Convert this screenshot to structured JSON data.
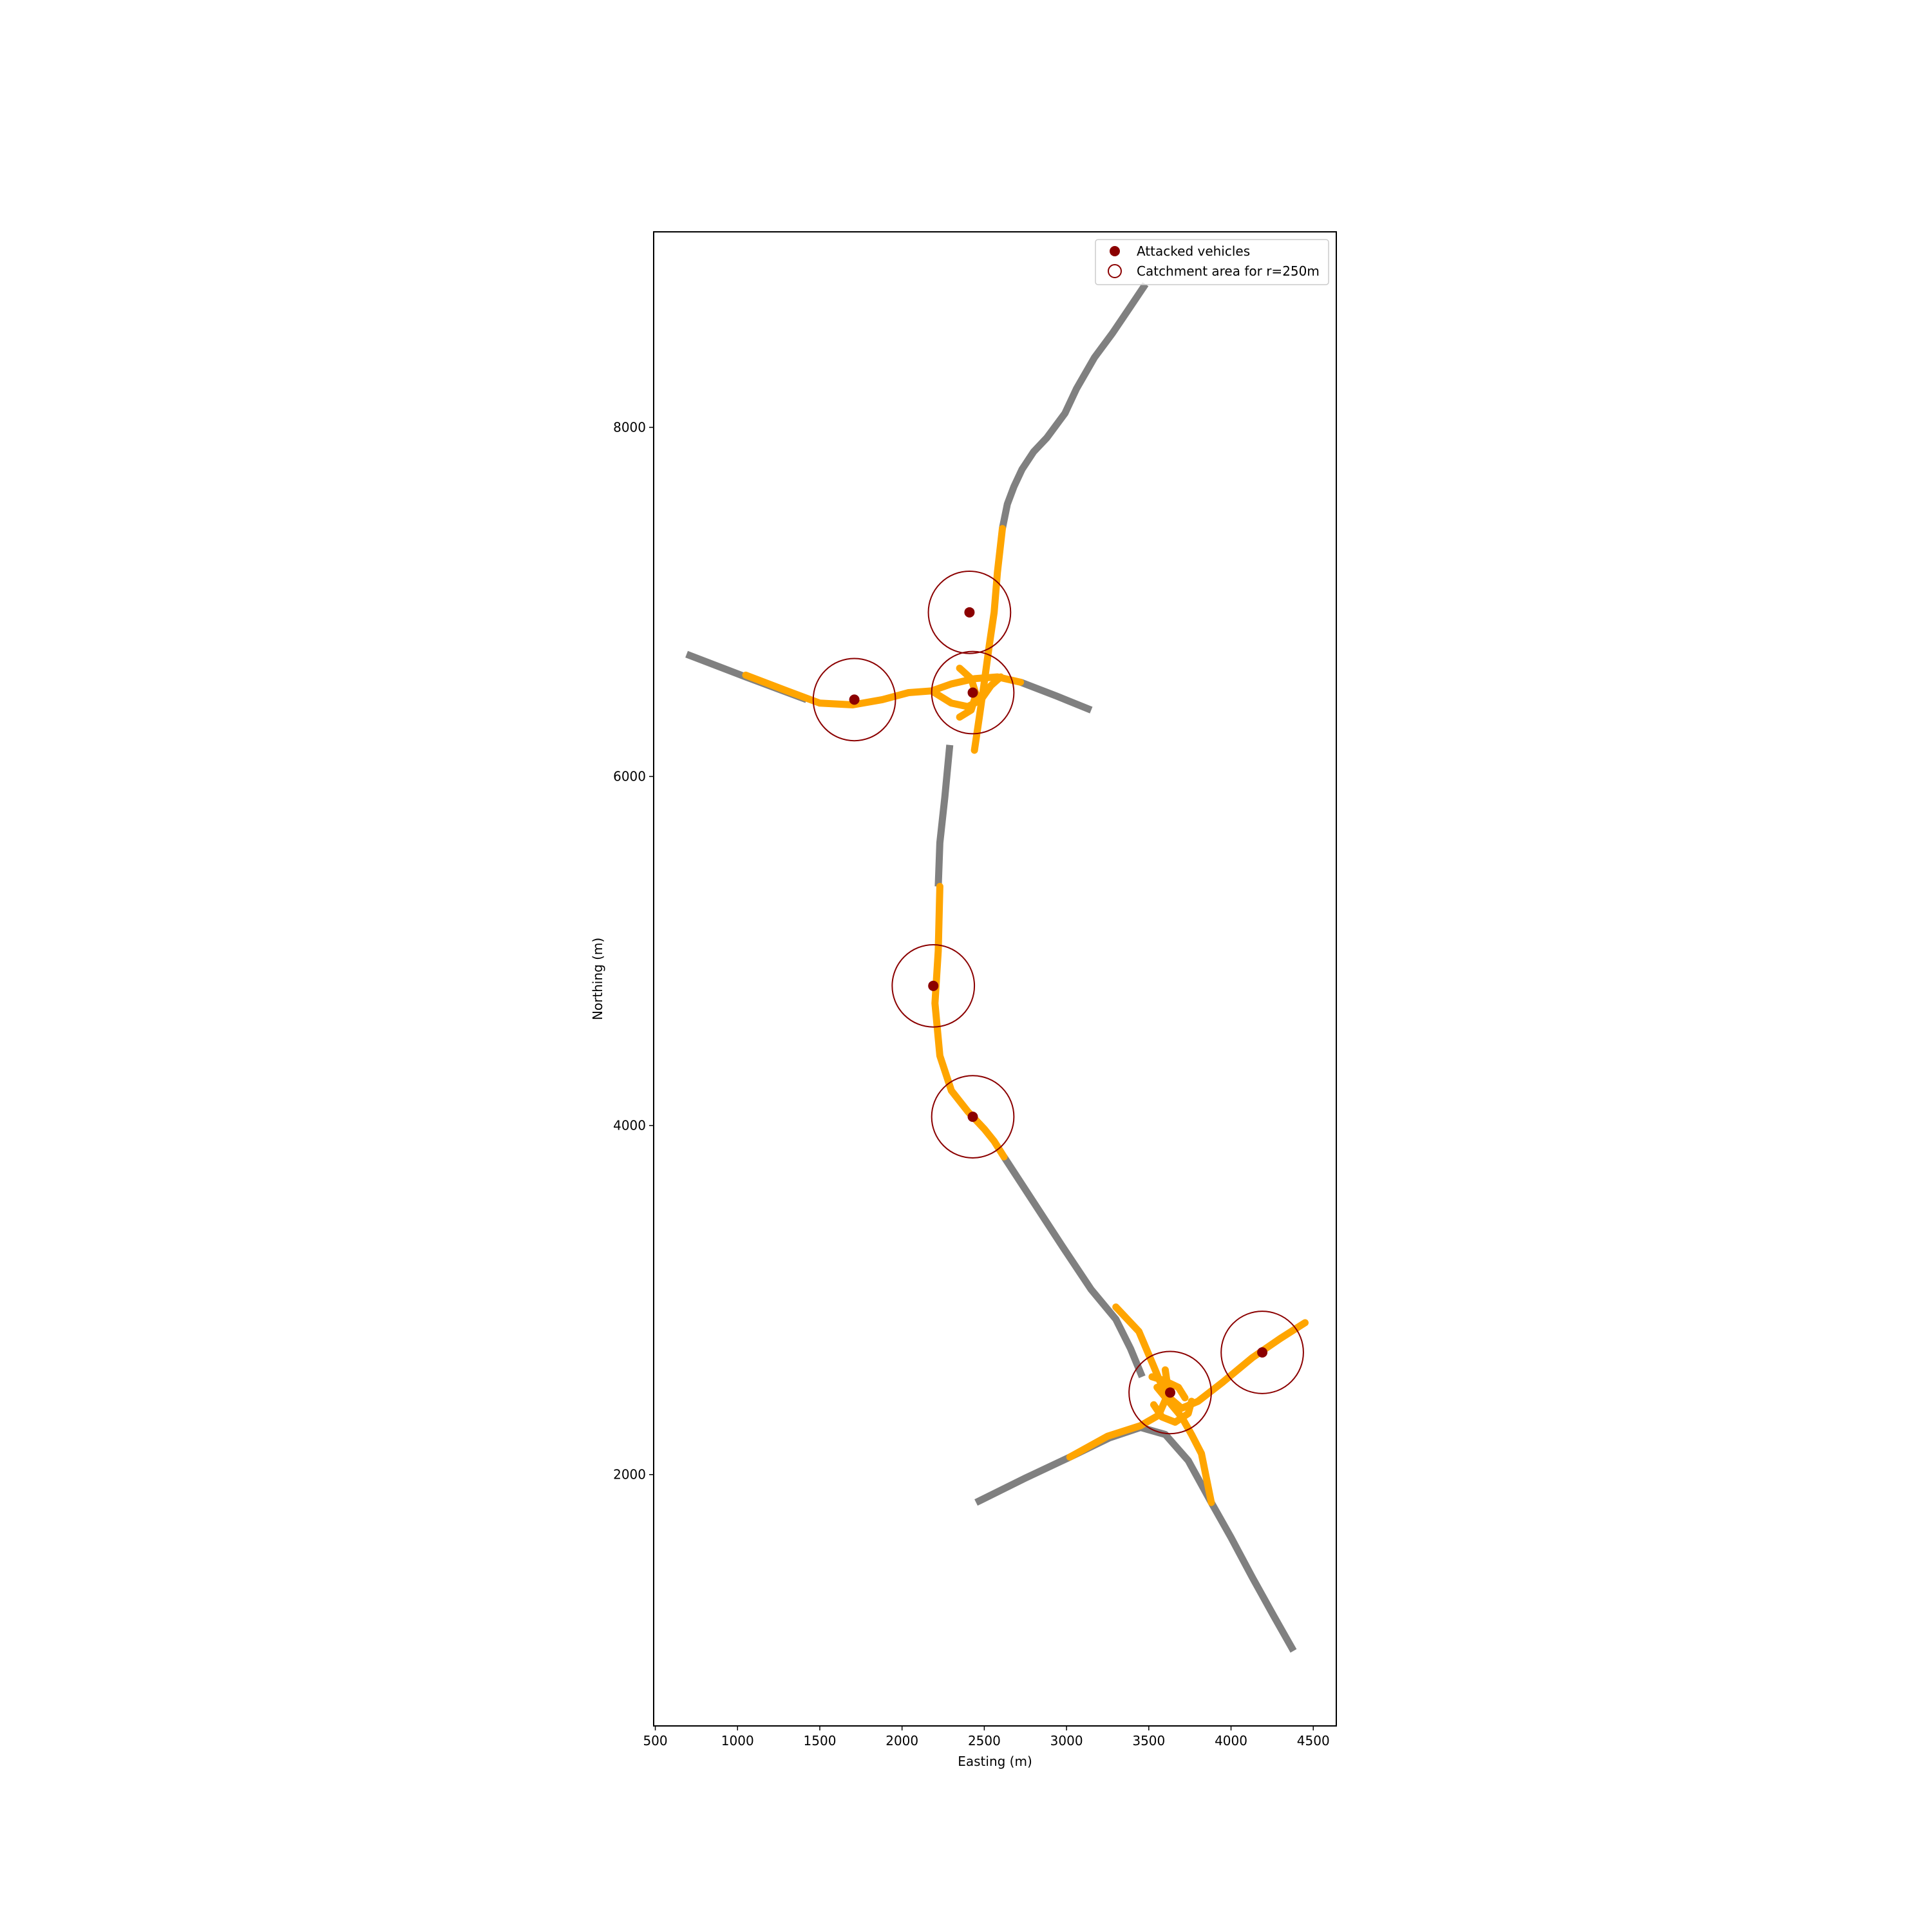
{
  "chart_data": {
    "type": "scatter",
    "xlabel": "Easting (m)",
    "ylabel": "Northing (m)",
    "xlim": [
      490,
      4640
    ],
    "ylim": [
      560,
      9120
    ],
    "xticks": [
      500,
      1000,
      1500,
      2000,
      2500,
      3000,
      3500,
      4000,
      4500
    ],
    "yticks": [
      2000,
      4000,
      6000,
      8000
    ],
    "grid": false,
    "legend_position": "top-right",
    "legend": {
      "attacked": "Attacked vehicles",
      "catchment": "Catchment area for r=250m"
    },
    "catchment_radius": 250,
    "colors": {
      "road": "#808080",
      "affected_road": "#FFA500",
      "marker": "#8B0000"
    },
    "roads_gray": [
      [
        [
          3480,
          8820
        ],
        [
          3380,
          8680
        ],
        [
          3280,
          8540
        ],
        [
          3170,
          8400
        ],
        [
          3060,
          8220
        ],
        [
          2990,
          8080
        ],
        [
          2880,
          7940
        ],
        [
          2800,
          7860
        ],
        [
          2730,
          7760
        ],
        [
          2680,
          7660
        ],
        [
          2640,
          7560
        ],
        [
          2610,
          7420
        ]
      ],
      [
        [
          690,
          6700
        ],
        [
          1050,
          6570
        ],
        [
          1420,
          6440
        ]
      ],
      [
        [
          2720,
          6540
        ],
        [
          2940,
          6460
        ],
        [
          3150,
          6380
        ]
      ],
      [
        [
          2290,
          6180
        ],
        [
          2260,
          5880
        ],
        [
          2230,
          5620
        ],
        [
          2220,
          5370
        ]
      ],
      [
        [
          2620,
          3820
        ],
        [
          2800,
          3560
        ],
        [
          2980,
          3300
        ],
        [
          3150,
          3060
        ],
        [
          3300,
          2890
        ],
        [
          3390,
          2720
        ],
        [
          3460,
          2560
        ]
      ],
      [
        [
          2450,
          1840
        ],
        [
          2750,
          1980
        ],
        [
          3020,
          2100
        ],
        [
          3260,
          2210
        ],
        [
          3450,
          2270
        ],
        [
          3600,
          2230
        ],
        [
          3740,
          2080
        ],
        [
          3880,
          1840
        ],
        [
          4000,
          1640
        ],
        [
          4130,
          1410
        ],
        [
          4260,
          1190
        ],
        [
          4380,
          990
        ]
      ]
    ],
    "roads_orange": [
      [
        [
          2610,
          7420
        ],
        [
          2580,
          7170
        ],
        [
          2560,
          6940
        ],
        [
          2530,
          6750
        ],
        [
          2500,
          6540
        ],
        [
          2470,
          6340
        ],
        [
          2440,
          6150
        ]
      ],
      [
        [
          1050,
          6580
        ],
        [
          1300,
          6490
        ],
        [
          1500,
          6420
        ],
        [
          1700,
          6410
        ],
        [
          1880,
          6440
        ],
        [
          2040,
          6480
        ],
        [
          2180,
          6490
        ],
        [
          2300,
          6530
        ],
        [
          2440,
          6560
        ],
        [
          2580,
          6570
        ],
        [
          2720,
          6540
        ]
      ],
      [
        [
          2180,
          6490
        ],
        [
          2300,
          6420
        ],
        [
          2400,
          6400
        ],
        [
          2480,
          6440
        ],
        [
          2540,
          6520
        ],
        [
          2600,
          6570
        ]
      ],
      [
        [
          2350,
          6620
        ],
        [
          2420,
          6560
        ],
        [
          2450,
          6470
        ],
        [
          2420,
          6380
        ],
        [
          2350,
          6340
        ]
      ],
      [
        [
          2230,
          5370
        ],
        [
          2220,
          5000
        ],
        [
          2200,
          4700
        ],
        [
          2230,
          4400
        ],
        [
          2300,
          4200
        ],
        [
          2400,
          4080
        ],
        [
          2500,
          3980
        ],
        [
          2560,
          3910
        ],
        [
          2620,
          3820
        ]
      ],
      [
        [
          3300,
          2960
        ],
        [
          3440,
          2820
        ],
        [
          3530,
          2620
        ],
        [
          3600,
          2460
        ],
        [
          3700,
          2380
        ],
        [
          3800,
          2420
        ],
        [
          3950,
          2530
        ],
        [
          4130,
          2670
        ],
        [
          4300,
          2780
        ],
        [
          4450,
          2870
        ]
      ],
      [
        [
          3020,
          2100
        ],
        [
          3250,
          2220
        ],
        [
          3450,
          2280
        ],
        [
          3560,
          2340
        ],
        [
          3620,
          2470
        ],
        [
          3600,
          2600
        ]
      ],
      [
        [
          3550,
          2500
        ],
        [
          3620,
          2420
        ],
        [
          3700,
          2330
        ],
        [
          3760,
          2230
        ],
        [
          3820,
          2120
        ],
        [
          3880,
          1840
        ]
      ],
      [
        [
          3530,
          2400
        ],
        [
          3580,
          2330
        ],
        [
          3660,
          2300
        ],
        [
          3740,
          2350
        ],
        [
          3760,
          2420
        ]
      ],
      [
        [
          3520,
          2560
        ],
        [
          3590,
          2540
        ],
        [
          3680,
          2500
        ],
        [
          3720,
          2440
        ]
      ]
    ],
    "attacked_points": [
      {
        "x": 2410,
        "y": 6940
      },
      {
        "x": 1710,
        "y": 6440
      },
      {
        "x": 2430,
        "y": 6480
      },
      {
        "x": 2190,
        "y": 4800
      },
      {
        "x": 2430,
        "y": 4050
      },
      {
        "x": 3630,
        "y": 2470
      },
      {
        "x": 4190,
        "y": 2700
      }
    ]
  }
}
